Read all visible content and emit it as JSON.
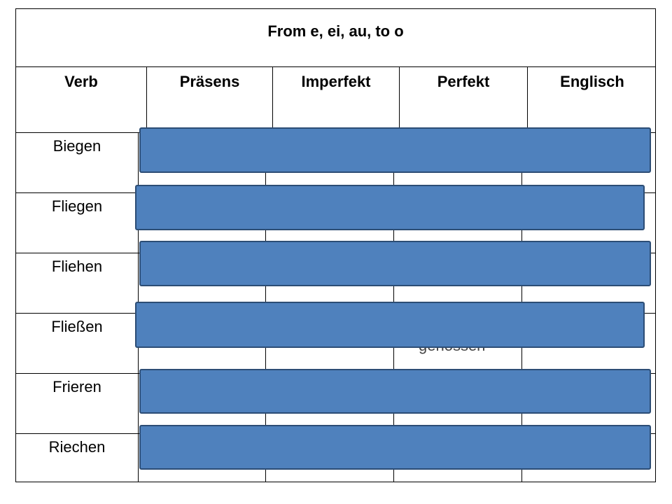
{
  "table": {
    "title": "From e, ei, au, to o",
    "headers": [
      "Verb",
      "Präsens",
      "Imperfekt",
      "Perfekt",
      "Englisch"
    ],
    "verbs": [
      "Biegen",
      "Fliegen",
      "Fliehen",
      "Fließen",
      "Frieren",
      "Riechen"
    ],
    "visible_fragment": "genossen"
  },
  "colors": {
    "cover_fill": "#4f81bd",
    "cover_border": "#2c4d75"
  }
}
